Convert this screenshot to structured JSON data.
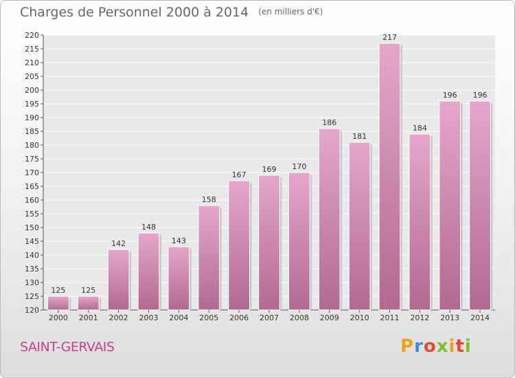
{
  "chart_data": {
    "type": "bar",
    "title": "Charges de Personnel 2000 à 2014",
    "subtitle": "(en milliers d'€)",
    "categories": [
      "2000",
      "2001",
      "2002",
      "2003",
      "2004",
      "2005",
      "2006",
      "2007",
      "2008",
      "2009",
      "2010",
      "2011",
      "2012",
      "2013",
      "2014"
    ],
    "values": [
      125,
      125,
      142,
      148,
      143,
      158,
      167,
      169,
      170,
      186,
      181,
      217,
      184,
      196,
      196
    ],
    "ylim": [
      120,
      220
    ],
    "yticks": [
      120,
      125,
      130,
      135,
      140,
      145,
      150,
      155,
      160,
      165,
      170,
      175,
      180,
      185,
      190,
      195,
      200,
      205,
      210,
      215,
      220
    ],
    "grid": true,
    "bar_color": "#d98bb8"
  },
  "footer": {
    "place": "SAINT-GERVAIS",
    "logo_letters": [
      "P",
      "r",
      "o",
      "x",
      "i",
      "t",
      "i"
    ],
    "logo_colors": [
      "#f0a020",
      "#3a8fd6",
      "#e8462e",
      "#7bbf2a",
      "#f0a020",
      "#e8462e",
      "#7bbf2a"
    ]
  }
}
